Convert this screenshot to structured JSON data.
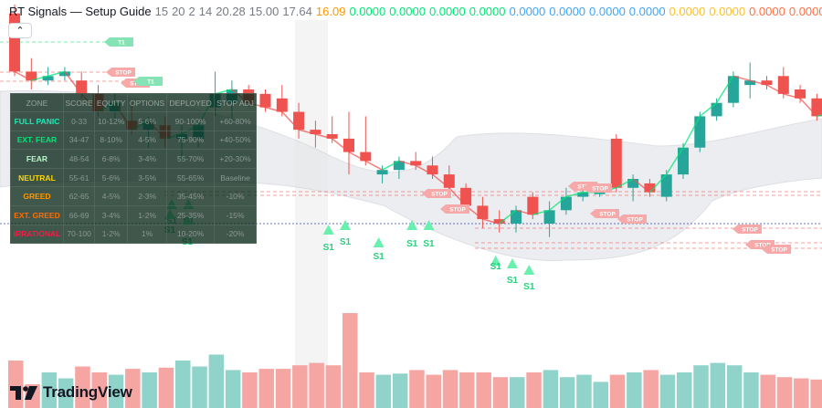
{
  "header": {
    "title": "RT Signals — Setup Guide",
    "values": [
      {
        "text": "15",
        "color": "#787b86"
      },
      {
        "text": "20",
        "color": "#787b86"
      },
      {
        "text": "2",
        "color": "#787b86"
      },
      {
        "text": "14",
        "color": "#787b86"
      },
      {
        "text": "20.28",
        "color": "#787b86"
      },
      {
        "text": "15.00",
        "color": "#787b86"
      },
      {
        "text": "17.64",
        "color": "#787b86"
      },
      {
        "text": "16.09",
        "color": "#ff9800"
      },
      {
        "text": "0.0000",
        "color": "#00e676"
      },
      {
        "text": "0.0000",
        "color": "#00e676"
      },
      {
        "text": "0.0000",
        "color": "#00e676"
      },
      {
        "text": "0.0000",
        "color": "#00e676"
      },
      {
        "text": "0.0000",
        "color": "#42a5f5"
      },
      {
        "text": "0.0000",
        "color": "#42a5f5"
      },
      {
        "text": "0.0000",
        "color": "#42a5f5"
      },
      {
        "text": "0.0000",
        "color": "#42a5f5"
      },
      {
        "text": "0.0000",
        "color": "#fbc02d"
      },
      {
        "text": "0.0000",
        "color": "#fbc02d"
      },
      {
        "text": "0.0000",
        "color": "#ff7043"
      },
      {
        "text": "0.0000",
        "color": "#ff7043"
      }
    ]
  },
  "collapse_icon": "chevron-up-icon",
  "table": {
    "headers": [
      "ZONE",
      "SCORE",
      "EQUITY",
      "OPTIONS",
      "DEPLOYED",
      "STOP ADJ"
    ],
    "rows": [
      {
        "zone": "FULL PANIC",
        "color": "#1de9b6",
        "score": "0-33",
        "equity": "10-12%",
        "options": "5-6%",
        "deployed": "90-100%",
        "stop": "+60-80%"
      },
      {
        "zone": "EXT. FEAR",
        "color": "#00e676",
        "score": "34-47",
        "equity": "8-10%",
        "options": "4-5%",
        "deployed": "75-90%",
        "stop": "+40-50%"
      },
      {
        "zone": "FEAR",
        "color": "#b9f6ca",
        "score": "48-54",
        "equity": "6-8%",
        "options": "3-4%",
        "deployed": "55-70%",
        "stop": "+20-30%"
      },
      {
        "zone": "NEUTRAL",
        "color": "#ffd600",
        "score": "55-61",
        "equity": "5-6%",
        "options": "3-5%",
        "deployed": "55-65%",
        "stop": "Baseline"
      },
      {
        "zone": "GREED",
        "color": "#ff9800",
        "score": "62-65",
        "equity": "4-5%",
        "options": "2-3%",
        "deployed": "35-45%",
        "stop": "-10%"
      },
      {
        "zone": "EXT. GREED",
        "color": "#ff6d00",
        "score": "66-69",
        "equity": "3-4%",
        "options": "1-2%",
        "deployed": "25-35%",
        "stop": "-15%"
      },
      {
        "zone": "IRRATIONAL",
        "color": "#ff1744",
        "score": "70-100",
        "equity": "1-2%",
        "options": "1%",
        "deployed": "10-20%",
        "stop": "-20%"
      }
    ]
  },
  "chart_data": {
    "type": "candlestick",
    "colors": {
      "up": "#26a69a",
      "down": "#ef5350",
      "vol_up": "#8fd3cb",
      "vol_down": "#f5a6a3"
    },
    "candles": [
      {
        "o": 16.55,
        "h": 16.65,
        "l": 15.85,
        "c": 15.9
      },
      {
        "o": 15.9,
        "h": 16.05,
        "l": 15.7,
        "c": 15.8
      },
      {
        "o": 15.8,
        "h": 15.95,
        "l": 15.75,
        "c": 15.85
      },
      {
        "o": 15.85,
        "h": 15.95,
        "l": 15.8,
        "c": 15.9
      },
      {
        "o": 15.8,
        "h": 15.9,
        "l": 15.6,
        "c": 15.65
      },
      {
        "o": 15.65,
        "h": 15.75,
        "l": 15.4,
        "c": 15.45
      },
      {
        "o": 15.45,
        "h": 15.65,
        "l": 15.35,
        "c": 15.55
      },
      {
        "o": 15.35,
        "h": 15.55,
        "l": 15.2,
        "c": 15.25
      },
      {
        "o": 15.25,
        "h": 15.4,
        "l": 15.05,
        "c": 15.35
      },
      {
        "o": 15.3,
        "h": 15.4,
        "l": 15.05,
        "c": 15.15
      },
      {
        "o": 15.15,
        "h": 15.3,
        "l": 14.9,
        "c": 15.2
      },
      {
        "o": 15.15,
        "h": 15.35,
        "l": 15.05,
        "c": 15.3
      },
      {
        "o": 15.5,
        "h": 15.9,
        "l": 15.4,
        "c": 15.65
      },
      {
        "o": 15.55,
        "h": 15.8,
        "l": 15.35,
        "c": 15.7
      },
      {
        "o": 15.7,
        "h": 15.75,
        "l": 15.5,
        "c": 15.55
      },
      {
        "o": 15.65,
        "h": 15.7,
        "l": 15.45,
        "c": 15.5
      },
      {
        "o": 15.6,
        "h": 15.75,
        "l": 15.4,
        "c": 15.45
      },
      {
        "o": 15.45,
        "h": 15.55,
        "l": 15.15,
        "c": 15.25
      },
      {
        "o": 15.25,
        "h": 15.35,
        "l": 15.05,
        "c": 15.2
      },
      {
        "o": 15.2,
        "h": 15.4,
        "l": 15.1,
        "c": 15.15
      },
      {
        "o": 15.15,
        "h": 15.45,
        "l": 14.75,
        "c": 15.0
      },
      {
        "o": 15.0,
        "h": 15.4,
        "l": 14.85,
        "c": 14.9
      },
      {
        "o": 14.75,
        "h": 14.85,
        "l": 14.65,
        "c": 14.8
      },
      {
        "o": 14.8,
        "h": 14.95,
        "l": 14.7,
        "c": 14.9
      },
      {
        "o": 14.9,
        "h": 15.0,
        "l": 14.8,
        "c": 14.85
      },
      {
        "o": 14.85,
        "h": 14.95,
        "l": 14.7,
        "c": 14.75
      },
      {
        "o": 14.75,
        "h": 14.85,
        "l": 14.55,
        "c": 14.6
      },
      {
        "o": 14.6,
        "h": 14.65,
        "l": 14.35,
        "c": 14.4
      },
      {
        "o": 14.4,
        "h": 14.5,
        "l": 14.15,
        "c": 14.25
      },
      {
        "o": 14.25,
        "h": 14.35,
        "l": 14.1,
        "c": 14.2
      },
      {
        "o": 14.2,
        "h": 14.4,
        "l": 14.1,
        "c": 14.35
      },
      {
        "o": 14.5,
        "h": 14.55,
        "l": 14.25,
        "c": 14.3
      },
      {
        "o": 14.2,
        "h": 14.45,
        "l": 14.05,
        "c": 14.35
      },
      {
        "o": 14.35,
        "h": 14.6,
        "l": 14.3,
        "c": 14.5
      },
      {
        "o": 14.5,
        "h": 14.6,
        "l": 14.45,
        "c": 14.55
      },
      {
        "o": 14.55,
        "h": 14.6,
        "l": 14.5,
        "c": 14.55
      },
      {
        "o": 15.15,
        "h": 15.2,
        "l": 14.55,
        "c": 14.6
      },
      {
        "o": 14.6,
        "h": 14.75,
        "l": 14.45,
        "c": 14.7
      },
      {
        "o": 14.65,
        "h": 14.7,
        "l": 14.5,
        "c": 14.55
      },
      {
        "o": 14.5,
        "h": 14.8,
        "l": 14.45,
        "c": 14.75
      },
      {
        "o": 14.75,
        "h": 15.1,
        "l": 14.7,
        "c": 15.05
      },
      {
        "o": 15.05,
        "h": 15.45,
        "l": 15.0,
        "c": 15.4
      },
      {
        "o": 15.4,
        "h": 15.6,
        "l": 15.35,
        "c": 15.55
      },
      {
        "o": 15.55,
        "h": 15.9,
        "l": 15.5,
        "c": 15.85
      },
      {
        "o": 15.75,
        "h": 16.0,
        "l": 15.6,
        "c": 15.8
      },
      {
        "o": 15.8,
        "h": 15.85,
        "l": 15.7,
        "c": 15.75
      },
      {
        "o": 15.85,
        "h": 15.95,
        "l": 15.6,
        "c": 15.65
      },
      {
        "o": 15.7,
        "h": 15.75,
        "l": 15.55,
        "c": 15.6
      },
      {
        "o": 15.6,
        "h": 15.65,
        "l": 15.35,
        "c": 15.4
      },
      {
        "o": 15.35,
        "h": 15.5,
        "l": 15.3,
        "c": 15.45
      }
    ],
    "volume": [
      40,
      20,
      30,
      25,
      35,
      30,
      28,
      33,
      30,
      34,
      40,
      35,
      45,
      32,
      30,
      33,
      33,
      36,
      38,
      36,
      80,
      30,
      28,
      29,
      32,
      28,
      32,
      30,
      30,
      26,
      26,
      30,
      32,
      26,
      28,
      22,
      28,
      30,
      32,
      28,
      30,
      36,
      38,
      36,
      30,
      28,
      26,
      25,
      24,
      22
    ],
    "line_colors": [
      "#ef5350",
      "#00e676"
    ],
    "signals": [
      {
        "i": 10,
        "label": "S1"
      },
      {
        "i": 11,
        "label": "S1"
      },
      {
        "i": 19,
        "label": "S1"
      },
      {
        "i": 20,
        "label": "S1"
      },
      {
        "i": 22,
        "label": "S1"
      },
      {
        "i": 24,
        "label": "S1"
      },
      {
        "i": 25,
        "label": "S1"
      },
      {
        "i": 29,
        "label": "S1"
      },
      {
        "i": 30,
        "label": "S1"
      },
      {
        "i": 31,
        "label": "S1"
      }
    ],
    "stop_tags": [
      "STOP",
      "STOP",
      "STOP",
      "STOP",
      "STOP",
      "STOP",
      "STOP",
      "STOP",
      "STOP",
      "STOP",
      "STOP"
    ],
    "target_tags": [
      "T1",
      "T1"
    ]
  },
  "brand": {
    "name": "TradingView",
    "icon": "tradingview-logo-icon"
  }
}
